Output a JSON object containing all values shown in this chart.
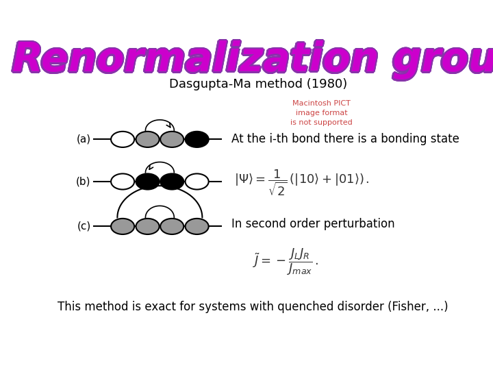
{
  "title": "Renormalization group",
  "title_color": "#CC00CC",
  "title_shadow_color": "#8833AA",
  "subtitle": "Dasgupta-Ma method (1980)",
  "bg_color": "#ffffff",
  "label_a": "(a)",
  "label_b": "(b)",
  "label_c": "(c)",
  "text_bonding": "At the i-th bond there is a bonding state",
  "text_second": "In second order perturbation",
  "text_footer": "This method is exact for systems with quenched disorder (Fisher, ...)",
  "formula1": "$|\\Psi\\rangle = \\dfrac{1}{\\sqrt{2}}\\,(|10\\rangle + |01\\rangle)\\,.$",
  "formula2": "$\\tilde{J} = -\\dfrac{J_L J_R}{J_{max}}\\,.$",
  "pict_note": "Macintosh PICT\nimage format\nis not supported",
  "pict_color": "#CC4444",
  "gray": "#999999",
  "white": "#ffffff",
  "black": "#000000"
}
